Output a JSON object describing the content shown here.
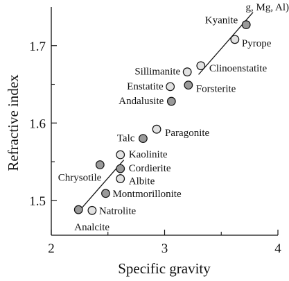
{
  "chart_data": {
    "type": "scatter",
    "top_text": "g, Mg, Al)",
    "xlabel": "Specific gravity",
    "ylabel": "Refractive index",
    "xlim": [
      2,
      4
    ],
    "ylim": [
      1.455,
      1.75
    ],
    "x_ticks": [
      {
        "value": 2,
        "label": "2"
      },
      {
        "value": 3,
        "label": "3"
      },
      {
        "value": 4,
        "label": "4"
      }
    ],
    "x_minor_ticks": [
      2.5,
      3.5
    ],
    "y_ticks": [
      {
        "value": 1.5,
        "label": "1.5"
      },
      {
        "value": 1.6,
        "label": "1.6"
      },
      {
        "value": 1.7,
        "label": "1.7"
      }
    ],
    "y_minor_ticks": [
      1.55,
      1.65
    ],
    "fit_line": {
      "from": [
        2.25,
        1.487
      ],
      "to": [
        3.78,
        1.743
      ],
      "dashed_gap": [
        2.64,
        3.3
      ]
    },
    "colors": {
      "filled": "#9a9a9a",
      "open": "#e2e2e2",
      "stroke": "#111111"
    },
    "points": [
      {
        "name": "Kyanite",
        "x": 3.72,
        "y": 1.727,
        "filled": true,
        "label_anchor": "end",
        "label_dx": -12,
        "label_dy": -2
      },
      {
        "name": "Pyrope",
        "x": 3.62,
        "y": 1.708,
        "filled": false,
        "label_anchor": "start",
        "label_dx": 10,
        "label_dy": 10
      },
      {
        "name": "Sillimanite",
        "x": 3.2,
        "y": 1.666,
        "filled": false,
        "label_anchor": "end",
        "label_dx": -10,
        "label_dy": 4
      },
      {
        "name": "Clinoenstatite",
        "x": 3.32,
        "y": 1.674,
        "filled": false,
        "label_anchor": "start",
        "label_dx": 12,
        "label_dy": 8
      },
      {
        "name": "Enstatite",
        "x": 3.05,
        "y": 1.647,
        "filled": false,
        "label_anchor": "end",
        "label_dx": -10,
        "label_dy": 4
      },
      {
        "name": "Forsterite",
        "x": 3.21,
        "y": 1.649,
        "filled": true,
        "label_anchor": "start",
        "label_dx": 11,
        "label_dy": 10
      },
      {
        "name": "Andalusite",
        "x": 3.06,
        "y": 1.628,
        "filled": true,
        "label_anchor": "end",
        "label_dx": -11,
        "label_dy": 4
      },
      {
        "name": "Paragonite",
        "x": 2.93,
        "y": 1.592,
        "filled": false,
        "label_anchor": "start",
        "label_dx": 12,
        "label_dy": 10
      },
      {
        "name": "Talc",
        "x": 2.81,
        "y": 1.58,
        "filled": true,
        "label_anchor": "end",
        "label_dx": -12,
        "label_dy": 4
      },
      {
        "name": "Kaolinite",
        "x": 2.61,
        "y": 1.559,
        "filled": false,
        "label_anchor": "start",
        "label_dx": 12,
        "label_dy": 4
      },
      {
        "name": "Chrysotile",
        "x": 2.43,
        "y": 1.546,
        "filled": true,
        "label_anchor": "end",
        "label_dx": 2,
        "label_dy": 23
      },
      {
        "name": "Cordierite",
        "x": 2.61,
        "y": 1.541,
        "filled": true,
        "label_anchor": "start",
        "label_dx": 12,
        "label_dy": 4
      },
      {
        "name": "Albite",
        "x": 2.61,
        "y": 1.528,
        "filled": false,
        "label_anchor": "start",
        "label_dx": 12,
        "label_dy": 8
      },
      {
        "name": "Montmorillonite",
        "x": 2.48,
        "y": 1.509,
        "filled": true,
        "label_anchor": "start",
        "label_dx": 10,
        "label_dy": 5
      },
      {
        "name": "Natrolite",
        "x": 2.36,
        "y": 1.487,
        "filled": false,
        "label_anchor": "start",
        "label_dx": 10,
        "label_dy": 5
      },
      {
        "name": "Analcite",
        "x": 2.24,
        "y": 1.488,
        "filled": true,
        "label_anchor": "start",
        "label_dx": -6,
        "label_dy": 30
      }
    ]
  }
}
